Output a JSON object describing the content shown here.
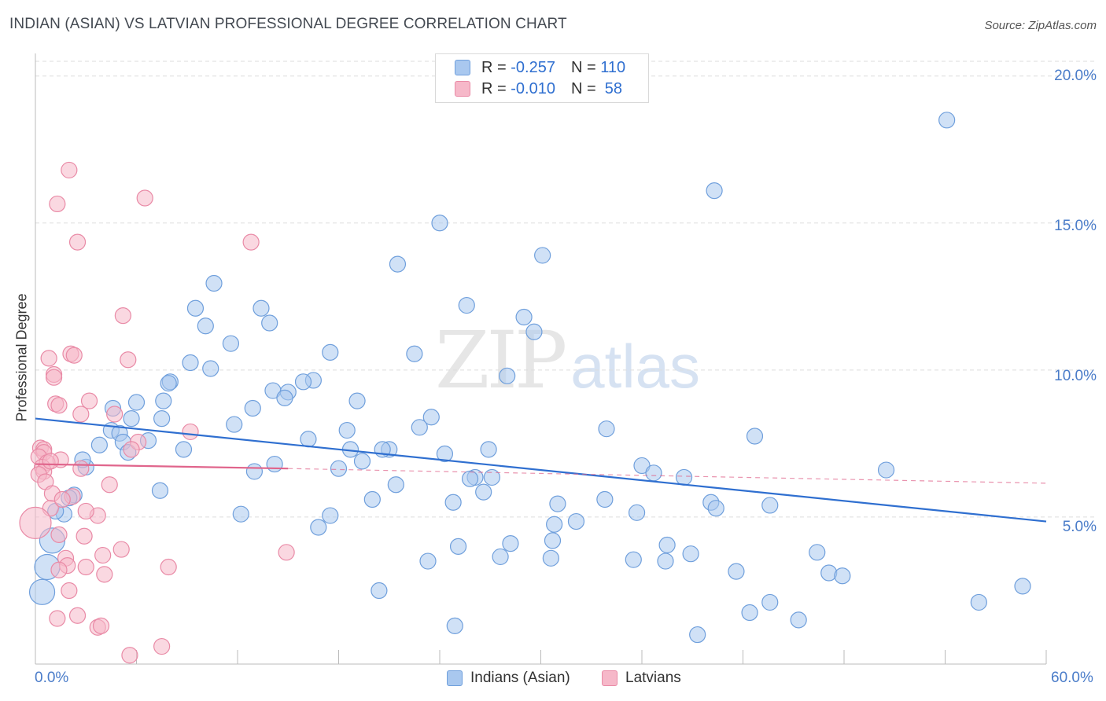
{
  "title": "INDIAN (ASIAN) VS LATVIAN PROFESSIONAL DEGREE CORRELATION CHART",
  "source": "Source: ZipAtlas.com",
  "watermark": {
    "zip": "ZIP",
    "atlas": "atlas"
  },
  "legend": {
    "rows": [
      {
        "r_label": "R =",
        "r_value": "-0.257",
        "n_label": "N =",
        "n_value": "110"
      },
      {
        "r_label": "R =",
        "r_value": "-0.010",
        "n_label": "N =",
        "n_value": "58"
      }
    ]
  },
  "colors": {
    "blue_fill": "#a9c8ef",
    "blue_stroke": "#6f9fdc",
    "blue_line": "#2f6fd0",
    "pink_fill": "#f6b8c9",
    "pink_stroke": "#e98aa6",
    "pink_line": "#e0658c",
    "grid": "#dddddd",
    "tick_text": "#4a7cc9"
  },
  "chart_data": {
    "type": "scatter",
    "title": "INDIAN (ASIAN) VS LATVIAN PROFESSIONAL DEGREE CORRELATION CHART",
    "xlabel": "",
    "ylabel": "Professional Degree",
    "xlim": [
      0,
      60
    ],
    "ylim": [
      0,
      20.5
    ],
    "x_tick_labels": [
      "0.0%",
      "60.0%"
    ],
    "y_ticks": [
      5,
      10,
      15,
      20
    ],
    "y_tick_labels": [
      "5.0%",
      "10.0%",
      "15.0%",
      "20.0%"
    ],
    "grid": true,
    "legend_position": "top-center and bottom",
    "series": [
      {
        "name": "Indians (Asian)",
        "color": "#a9c8ef",
        "r": -0.257,
        "n": 110,
        "trend": {
          "x": [
            0,
            60
          ],
          "y": [
            8.35,
            4.85
          ],
          "dashed": false
        },
        "points": [
          [
            54.1,
            18.5
          ],
          [
            40.3,
            16.1
          ],
          [
            24.0,
            15.0
          ],
          [
            30.1,
            13.9
          ],
          [
            21.5,
            13.6
          ],
          [
            10.6,
            12.95
          ],
          [
            25.6,
            12.2
          ],
          [
            29.0,
            11.8
          ],
          [
            9.5,
            12.1
          ],
          [
            13.4,
            12.1
          ],
          [
            13.9,
            11.6
          ],
          [
            10.1,
            11.5
          ],
          [
            29.6,
            11.3
          ],
          [
            11.6,
            10.9
          ],
          [
            17.5,
            10.6
          ],
          [
            22.5,
            10.55
          ],
          [
            9.2,
            10.25
          ],
          [
            10.4,
            10.05
          ],
          [
            28.0,
            9.8
          ],
          [
            16.5,
            9.65
          ],
          [
            15.9,
            9.6
          ],
          [
            8.0,
            9.6
          ],
          [
            7.9,
            9.55
          ],
          [
            14.1,
            9.3
          ],
          [
            15.0,
            9.25
          ],
          [
            14.8,
            9.05
          ],
          [
            19.1,
            8.95
          ],
          [
            7.6,
            8.95
          ],
          [
            6.0,
            8.9
          ],
          [
            12.9,
            8.7
          ],
          [
            4.6,
            8.7
          ],
          [
            23.5,
            8.4
          ],
          [
            5.7,
            8.35
          ],
          [
            7.5,
            8.35
          ],
          [
            11.8,
            8.15
          ],
          [
            22.8,
            8.05
          ],
          [
            18.5,
            7.95
          ],
          [
            33.9,
            8.0
          ],
          [
            4.5,
            7.95
          ],
          [
            5.0,
            7.85
          ],
          [
            42.7,
            7.75
          ],
          [
            16.2,
            7.65
          ],
          [
            6.7,
            7.6
          ],
          [
            5.2,
            7.55
          ],
          [
            3.8,
            7.45
          ],
          [
            21.0,
            7.3
          ],
          [
            20.6,
            7.3
          ],
          [
            18.7,
            7.3
          ],
          [
            26.9,
            7.3
          ],
          [
            8.8,
            7.3
          ],
          [
            5.5,
            7.2
          ],
          [
            24.3,
            7.15
          ],
          [
            19.4,
            6.9
          ],
          [
            14.2,
            6.8
          ],
          [
            36.0,
            6.75
          ],
          [
            3.0,
            6.7
          ],
          [
            18.0,
            6.65
          ],
          [
            50.5,
            6.6
          ],
          [
            13.0,
            6.55
          ],
          [
            36.7,
            6.5
          ],
          [
            38.5,
            6.35
          ],
          [
            27.1,
            6.35
          ],
          [
            26.1,
            6.35
          ],
          [
            25.8,
            6.3
          ],
          [
            21.4,
            6.1
          ],
          [
            7.4,
            5.9
          ],
          [
            26.6,
            5.85
          ],
          [
            2.3,
            5.75
          ],
          [
            2.0,
            5.65
          ],
          [
            33.8,
            5.6
          ],
          [
            20.0,
            5.6
          ],
          [
            40.1,
            5.5
          ],
          [
            24.8,
            5.5
          ],
          [
            31.0,
            5.45
          ],
          [
            43.6,
            5.4
          ],
          [
            40.4,
            5.3
          ],
          [
            35.7,
            5.15
          ],
          [
            12.2,
            5.1
          ],
          [
            1.7,
            5.1
          ],
          [
            1.2,
            5.2
          ],
          [
            17.5,
            5.05
          ],
          [
            32.1,
            4.85
          ],
          [
            30.8,
            4.75
          ],
          [
            16.8,
            4.65
          ],
          [
            30.7,
            4.2
          ],
          [
            28.2,
            4.1
          ],
          [
            37.5,
            4.05
          ],
          [
            25.1,
            4.0
          ],
          [
            1.0,
            4.2
          ],
          [
            46.4,
            3.8
          ],
          [
            38.9,
            3.75
          ],
          [
            27.6,
            3.65
          ],
          [
            30.6,
            3.6
          ],
          [
            35.5,
            3.55
          ],
          [
            37.4,
            3.5
          ],
          [
            23.3,
            3.5
          ],
          [
            0.7,
            3.3
          ],
          [
            41.6,
            3.15
          ],
          [
            47.1,
            3.1
          ],
          [
            47.9,
            3.0
          ],
          [
            58.6,
            2.65
          ],
          [
            20.4,
            2.5
          ],
          [
            0.4,
            2.45
          ],
          [
            56.0,
            2.1
          ],
          [
            43.6,
            2.1
          ],
          [
            42.4,
            1.75
          ],
          [
            45.3,
            1.5
          ],
          [
            24.9,
            1.3
          ],
          [
            39.3,
            1.0
          ],
          [
            2.8,
            6.95
          ]
        ]
      },
      {
        "name": "Latvians",
        "color": "#f6b8c9",
        "r": -0.01,
        "n": 58,
        "trend": {
          "x": [
            0,
            15
          ],
          "y": [
            6.8,
            6.65
          ],
          "dashed": false,
          "extension": {
            "x": [
              15,
              60
            ],
            "y": [
              6.65,
              6.15
            ],
            "dashed": true
          }
        },
        "points": [
          [
            2.0,
            16.8
          ],
          [
            1.3,
            15.65
          ],
          [
            6.5,
            15.85
          ],
          [
            2.5,
            14.35
          ],
          [
            12.8,
            14.35
          ],
          [
            5.2,
            11.85
          ],
          [
            2.1,
            10.55
          ],
          [
            2.3,
            10.5
          ],
          [
            0.8,
            10.4
          ],
          [
            5.5,
            10.35
          ],
          [
            1.1,
            9.85
          ],
          [
            1.1,
            9.75
          ],
          [
            3.2,
            8.95
          ],
          [
            1.2,
            8.85
          ],
          [
            1.4,
            8.8
          ],
          [
            4.7,
            8.5
          ],
          [
            2.7,
            8.5
          ],
          [
            9.2,
            7.9
          ],
          [
            6.1,
            7.55
          ],
          [
            0.3,
            7.35
          ],
          [
            0.5,
            7.3
          ],
          [
            5.7,
            7.3
          ],
          [
            0.5,
            7.2
          ],
          [
            0.2,
            7.05
          ],
          [
            1.5,
            6.95
          ],
          [
            0.7,
            6.85
          ],
          [
            0.4,
            6.7
          ],
          [
            2.7,
            6.65
          ],
          [
            0.5,
            6.55
          ],
          [
            0.2,
            6.45
          ],
          [
            0.6,
            6.2
          ],
          [
            4.4,
            6.1
          ],
          [
            1.0,
            5.8
          ],
          [
            2.2,
            5.7
          ],
          [
            0.9,
            5.3
          ],
          [
            3.7,
            5.05
          ],
          [
            0.0,
            4.8
          ],
          [
            1.4,
            4.4
          ],
          [
            2.9,
            4.35
          ],
          [
            5.1,
            3.9
          ],
          [
            14.9,
            3.8
          ],
          [
            4.0,
            3.7
          ],
          [
            1.8,
            3.6
          ],
          [
            1.9,
            3.35
          ],
          [
            3.0,
            3.3
          ],
          [
            7.9,
            3.3
          ],
          [
            1.4,
            3.2
          ],
          [
            4.1,
            3.05
          ],
          [
            2.0,
            2.5
          ],
          [
            2.5,
            1.65
          ],
          [
            3.7,
            1.25
          ],
          [
            3.9,
            1.3
          ],
          [
            7.5,
            0.6
          ],
          [
            5.6,
            0.3
          ],
          [
            1.3,
            1.55
          ],
          [
            0.9,
            6.9
          ],
          [
            3.0,
            5.2
          ],
          [
            1.6,
            5.6
          ]
        ]
      }
    ]
  },
  "bottom_legend": [
    {
      "label": "Indians (Asian)"
    },
    {
      "label": "Latvians"
    }
  ]
}
